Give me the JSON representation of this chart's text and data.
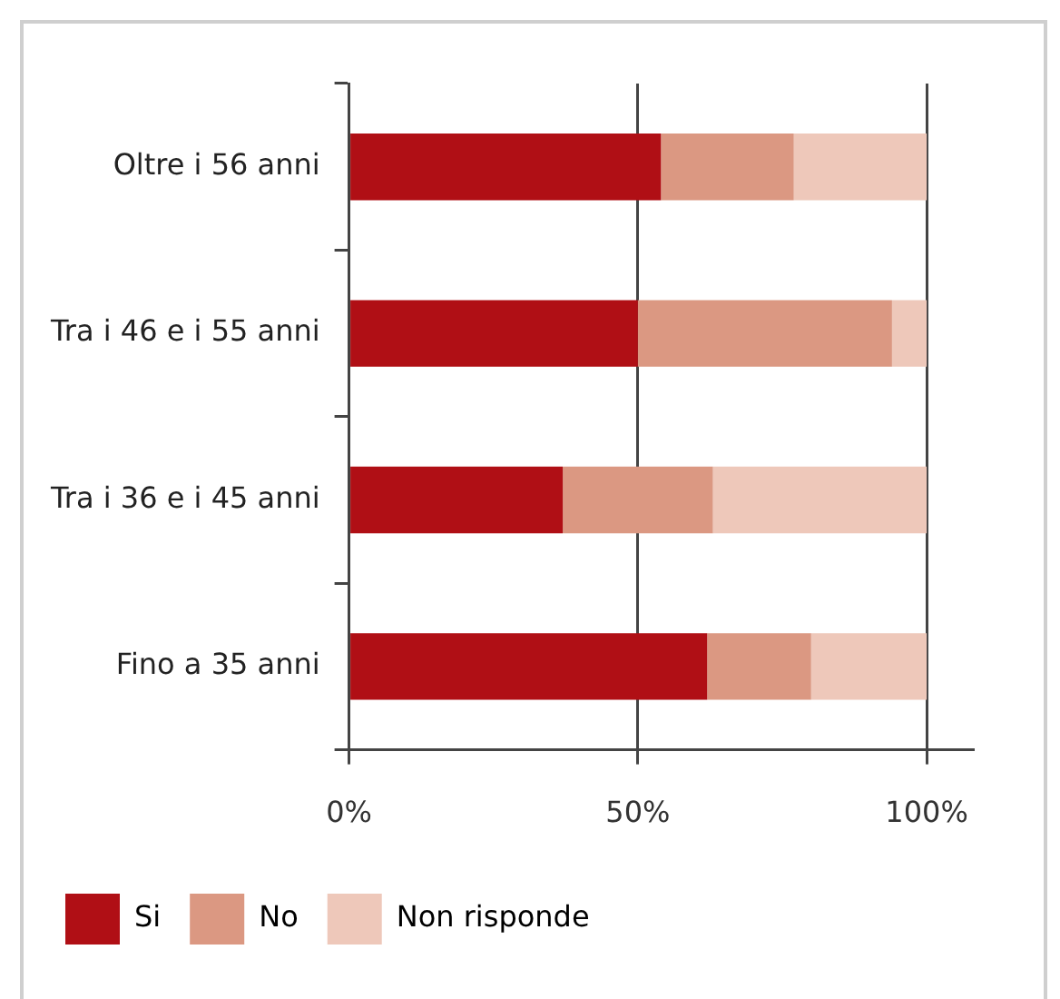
{
  "chart_data": {
    "type": "bar",
    "orientation": "horizontal",
    "stacked": true,
    "categories": [
      "Oltre i 56 anni",
      "Tra i 46 e i 55 anni",
      "Tra i 36 e i 45 anni",
      "Fino a 35 anni"
    ],
    "series": [
      {
        "name": "Si",
        "color": "#b00f15",
        "values": [
          54,
          50,
          37,
          62
        ]
      },
      {
        "name": "No",
        "color": "#db9882",
        "values": [
          23,
          44,
          26,
          18
        ]
      },
      {
        "name": "Non risponde",
        "color": "#eec8ba",
        "values": [
          23,
          6,
          37,
          20
        ]
      }
    ],
    "xlim": [
      0,
      108
    ],
    "xticks": [
      {
        "value": 0,
        "label": "0%"
      },
      {
        "value": 50,
        "label": "50%"
      },
      {
        "value": 100,
        "label": "100%"
      }
    ],
    "grid": "x",
    "legend": "bottom"
  }
}
